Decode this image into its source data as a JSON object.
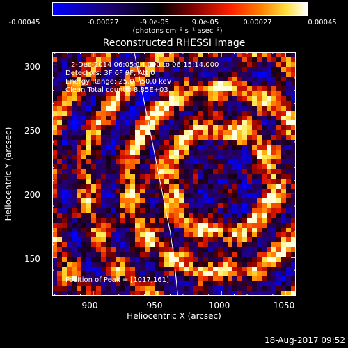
{
  "colorbar": {
    "ticks": [
      "-0.00045",
      "-0.00027",
      "-9.0e-05",
      "9.0e-05",
      "0.00027",
      "0.00045"
    ],
    "units": "(photons cm⁻² s⁻¹ asec⁻²)"
  },
  "chart_data": {
    "type": "heatmap",
    "title": "Reconstructed RHESSI Image",
    "xlabel": "Heliocentric X (arcsec)",
    "ylabel": "Heliocentric Y (arcsec)",
    "xlim": [
      868,
      1058
    ],
    "ylim": [
      120,
      310
    ],
    "xticks": [
      "900",
      "950",
      "1000",
      "1050"
    ],
    "yticks": [
      "300",
      "250",
      "200",
      "150"
    ],
    "color_range": [
      -0.00045,
      0.00045
    ],
    "colormap": "blue-black-red-orange-yellow-white",
    "limb_line": [
      [
        932,
        310
      ],
      [
        936,
        290
      ],
      [
        942,
        260
      ],
      [
        946,
        240
      ],
      [
        951,
        215
      ],
      [
        956,
        190
      ],
      [
        960,
        170
      ],
      [
        963,
        150
      ],
      [
        966,
        120
      ]
    ],
    "peak": [
      1017,
      161
    ],
    "info_lines": [
      "2-Dec-2014 06:05:14.000 to 06:15:14.000",
      "Detectors: 3F 6F 9F, Att 0",
      "Energy Range: 25.0 - 50.0 keV",
      "Clean    Total counts: 8.35E+03"
    ],
    "peak_label": "Position of Peak = [1017,161]"
  },
  "timestamp": "18-Aug-2017 09:52"
}
